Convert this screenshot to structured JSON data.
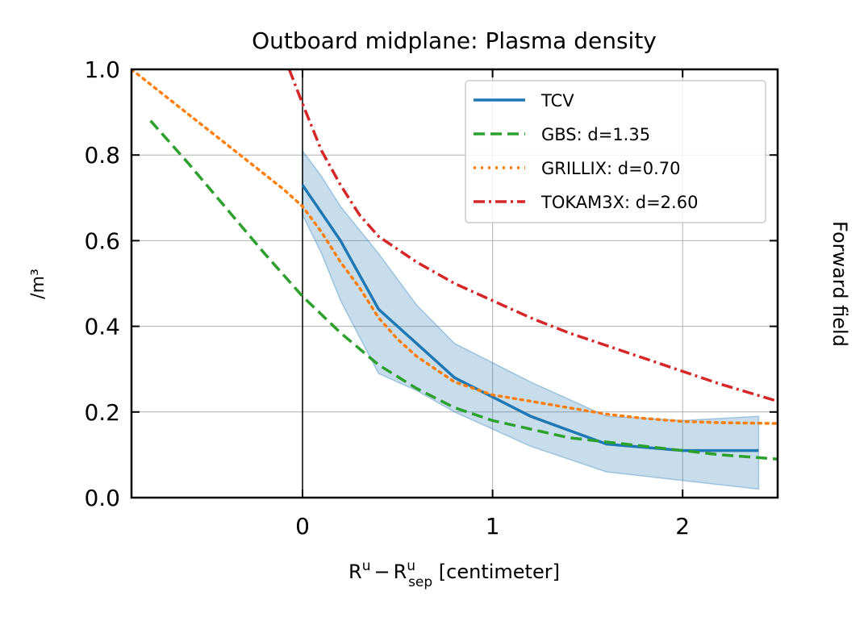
{
  "chart_data": {
    "type": "line",
    "title": "Outboard midplane: Plasma density",
    "xlabel": {
      "base": "R",
      "sup1": "u",
      "minus": "−",
      "sup2": "u",
      "sub2": "sep",
      "unit": " [centimeter]"
    },
    "ylabel": "/m³",
    "right_label": "Forward field",
    "xlim": [
      -0.9,
      2.5
    ],
    "ylim": [
      0.0,
      1.0
    ],
    "xticks": [
      0,
      1,
      2
    ],
    "xtick_labels": [
      "0",
      "1",
      "2"
    ],
    "yticks": [
      0.0,
      0.2,
      0.4,
      0.6,
      0.8,
      1.0
    ],
    "ytick_labels": [
      "0.0",
      "0.2",
      "0.4",
      "0.6",
      "0.8",
      "1.0"
    ],
    "grid": true,
    "legend_position": "top-right",
    "vline_x": 0,
    "band": {
      "series": "TCV",
      "color": "#1f77b4",
      "x": [
        0.0,
        0.1,
        0.2,
        0.4,
        0.6,
        0.8,
        1.2,
        1.6,
        2.0,
        2.4
      ],
      "upper": [
        0.81,
        0.75,
        0.68,
        0.57,
        0.45,
        0.36,
        0.27,
        0.19,
        0.18,
        0.19
      ],
      "lower": [
        0.66,
        0.57,
        0.46,
        0.29,
        0.25,
        0.2,
        0.12,
        0.06,
        0.04,
        0.02
      ]
    },
    "series": [
      {
        "name": "TCV",
        "color": "#1f77b4",
        "style": "solid",
        "x": [
          0.0,
          0.2,
          0.4,
          0.8,
          1.2,
          1.6,
          2.0,
          2.4
        ],
        "y": [
          0.73,
          0.6,
          0.44,
          0.28,
          0.19,
          0.125,
          0.11,
          0.11
        ]
      },
      {
        "name": "GBS: d=1.35",
        "color": "#2ca02c",
        "style": "dashed",
        "x": [
          -0.8,
          -0.6,
          -0.4,
          -0.2,
          0.0,
          0.2,
          0.4,
          0.6,
          0.8,
          1.0,
          1.2,
          1.4,
          1.6,
          1.8,
          2.0,
          2.2,
          2.5
        ],
        "y": [
          0.88,
          0.78,
          0.675,
          0.57,
          0.47,
          0.385,
          0.31,
          0.255,
          0.21,
          0.18,
          0.16,
          0.14,
          0.13,
          0.12,
          0.11,
          0.1,
          0.09
        ]
      },
      {
        "name": "GRILLIX: d=0.70",
        "color": "#ff7f0e",
        "style": "dotted",
        "x": [
          -0.9,
          -0.7,
          -0.5,
          -0.3,
          -0.1,
          0.0,
          0.1,
          0.2,
          0.3,
          0.4,
          0.5,
          0.6,
          0.8,
          1.0,
          1.2,
          1.4,
          1.6,
          1.8,
          2.0,
          2.2,
          2.5
        ],
        "y": [
          1.0,
          0.93,
          0.86,
          0.79,
          0.72,
          0.68,
          0.62,
          0.55,
          0.49,
          0.42,
          0.37,
          0.33,
          0.27,
          0.24,
          0.225,
          0.21,
          0.195,
          0.185,
          0.178,
          0.175,
          0.173
        ]
      },
      {
        "name": "TOKAM3X: d=2.60",
        "color": "#d62728",
        "style": "dashdot",
        "x": [
          -0.07,
          0.0,
          0.1,
          0.2,
          0.3,
          0.4,
          0.6,
          0.8,
          1.0,
          1.2,
          1.4,
          1.6,
          1.8,
          2.0,
          2.2,
          2.5
        ],
        "y": [
          1.0,
          0.92,
          0.81,
          0.73,
          0.66,
          0.61,
          0.55,
          0.5,
          0.46,
          0.42,
          0.385,
          0.355,
          0.325,
          0.295,
          0.265,
          0.225
        ]
      }
    ]
  }
}
